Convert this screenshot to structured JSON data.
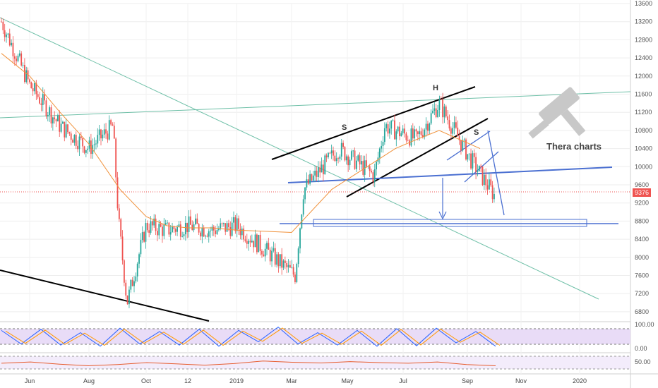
{
  "watermark": "Thera charts",
  "chart_data": {
    "type": "candlestick",
    "title": "",
    "last_price": 9376,
    "ylim": [
      6600,
      13600
    ],
    "y_ticks": [
      6800,
      7200,
      7600,
      8000,
      8400,
      8800,
      9200,
      9600,
      10000,
      10400,
      10800,
      11200,
      11600,
      12000,
      12400,
      12800,
      13200,
      13600
    ],
    "x_labels": [
      "Jun",
      "Aug",
      "Oct",
      "12",
      "2019",
      "Mar",
      "May",
      "Jul",
      "Sep",
      "Nov",
      "2020"
    ],
    "series": [
      {
        "x": [
          "May 2018",
          "Jun",
          "Jul",
          "Aug",
          "Aug",
          "Sep",
          "Sep",
          "Oct",
          "Nov",
          "Dec",
          "Jan 2019",
          "Feb",
          "Mar",
          "Mar",
          "Apr",
          "May",
          "Jun",
          "Jul",
          "Aug",
          "Sep",
          "Sep"
        ],
        "values": [
          13200,
          11800,
          10900,
          10400,
          10900,
          8800,
          7000,
          8700,
          8600,
          8700,
          8600,
          8700,
          7600,
          9500,
          10400,
          9800,
          10900,
          10600,
          11400,
          10200,
          9376
        ]
      },
      {
        "x": [
          "May 2018",
          "Jun",
          "Jul",
          "Aug",
          "Sep",
          "Oct",
          "Nov",
          "Dec",
          "Jan 2019",
          "Feb",
          "Mar",
          "Apr",
          "May",
          "Jun",
          "Jul",
          "Aug",
          "Sep"
        ],
        "values": [
          12500,
          12000,
          11200,
          10500,
          9500,
          8900,
          8700,
          8650,
          8650,
          8600,
          8550,
          9500,
          10000,
          10400,
          10600,
          10800,
          10400
        ]
      }
    ],
    "annotations": [
      "S",
      "H",
      "S"
    ],
    "indicators": [
      {
        "ticks": [
          "100.00",
          "0.00"
        ],
        "values": [
          80,
          20,
          85,
          15,
          70,
          10,
          90,
          20,
          75,
          15,
          85,
          10,
          80,
          30,
          95,
          20,
          70,
          15,
          80,
          10,
          88,
          12,
          90,
          25,
          75,
          10
        ]
      },
      {
        "ticks": [
          "50.00"
        ],
        "values": [
          48,
          52,
          45,
          40,
          44,
          50,
          46,
          42,
          47,
          55,
          51,
          49,
          53,
          50,
          48,
          52,
          44,
          40
        ]
      }
    ]
  }
}
